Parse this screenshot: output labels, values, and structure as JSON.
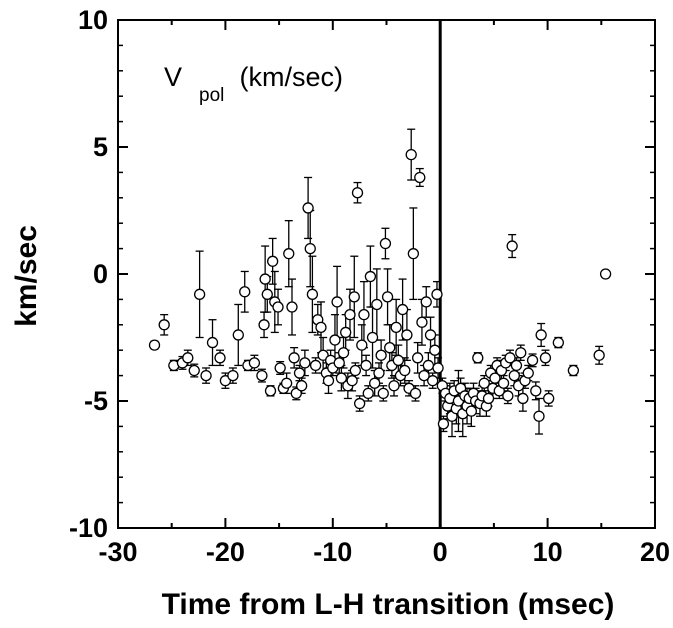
{
  "chart_data": {
    "type": "scatter",
    "title": "",
    "xlabel": "Time from L-H transition (msec)",
    "ylabel": "km/sec",
    "annotation": {
      "main": "V",
      "sub": "pol",
      "suffix": " (km/sec)"
    },
    "xlim": [
      -30,
      20
    ],
    "ylim": [
      -10,
      10
    ],
    "xticks": [
      -30,
      -20,
      -10,
      0,
      10,
      20
    ],
    "yticks": [
      -10,
      -5,
      0,
      5,
      10
    ],
    "xtick_labels": [
      "-30",
      "-20",
      "-10",
      "0",
      "10",
      "20"
    ],
    "ytick_labels": [
      "-10",
      "-5",
      "0",
      "5",
      "10"
    ],
    "grid": false,
    "reference_line_x": 0,
    "marker": "open-circle",
    "series": [
      {
        "points": [
          {
            "x": -26.6,
            "y": -2.8,
            "err": 0.15
          },
          {
            "x": -25.7,
            "y": -2.0,
            "err": 0.4
          },
          {
            "x": -24.8,
            "y": -3.6,
            "err": 0.2
          },
          {
            "x": -24.0,
            "y": -3.5,
            "err": 0.25
          },
          {
            "x": -23.5,
            "y": -3.3,
            "err": 0.3
          },
          {
            "x": -22.9,
            "y": -3.8,
            "err": 0.25
          },
          {
            "x": -22.4,
            "y": -0.8,
            "err": 1.7
          },
          {
            "x": -21.8,
            "y": -4.0,
            "err": 0.3
          },
          {
            "x": -21.2,
            "y": -2.7,
            "err": 0.9
          },
          {
            "x": -20.5,
            "y": -3.3,
            "err": 0.3
          },
          {
            "x": -20.0,
            "y": -4.2,
            "err": 0.3
          },
          {
            "x": -19.3,
            "y": -4.0,
            "err": 0.3
          },
          {
            "x": -18.8,
            "y": -2.4,
            "err": 1.2
          },
          {
            "x": -18.2,
            "y": -0.7,
            "err": 0.8
          },
          {
            "x": -17.9,
            "y": -3.6,
            "err": 0.2
          },
          {
            "x": -17.3,
            "y": -3.5,
            "err": 0.3
          },
          {
            "x": -16.6,
            "y": -4.0,
            "err": 0.25
          },
          {
            "x": -16.4,
            "y": -2.0,
            "err": 0.5
          },
          {
            "x": -16.3,
            "y": -0.2,
            "err": 1.3
          },
          {
            "x": -16.1,
            "y": -0.8,
            "err": 0.7
          },
          {
            "x": -15.8,
            "y": -4.6,
            "err": 0.2
          },
          {
            "x": -15.6,
            "y": 0.5,
            "err": 0.9
          },
          {
            "x": -15.4,
            "y": -1.1,
            "err": 1.2
          },
          {
            "x": -15.1,
            "y": -1.3,
            "err": 0.7
          },
          {
            "x": -14.9,
            "y": -3.7,
            "err": 0.25
          },
          {
            "x": -14.6,
            "y": -4.5,
            "err": 0.2
          },
          {
            "x": -14.3,
            "y": -4.3,
            "err": 0.4
          },
          {
            "x": -14.1,
            "y": 0.8,
            "err": 1.3
          },
          {
            "x": -13.8,
            "y": -1.3,
            "err": 1.1
          },
          {
            "x": -13.6,
            "y": -3.3,
            "err": 0.4
          },
          {
            "x": -13.4,
            "y": -4.7,
            "err": 0.25
          },
          {
            "x": -13.1,
            "y": -3.9,
            "err": 0.3
          },
          {
            "x": -12.9,
            "y": -4.4,
            "err": 0.3
          },
          {
            "x": -12.6,
            "y": -3.5,
            "err": 0.5
          },
          {
            "x": -12.3,
            "y": 2.6,
            "err": 1.2
          },
          {
            "x": -12.1,
            "y": 1.0,
            "err": 1.5
          },
          {
            "x": -11.9,
            "y": -0.8,
            "err": 1.5
          },
          {
            "x": -11.6,
            "y": -3.6,
            "err": 0.3
          },
          {
            "x": -11.4,
            "y": -1.8,
            "err": 0.6
          },
          {
            "x": -11.1,
            "y": -2.1,
            "err": 1.0
          },
          {
            "x": -10.9,
            "y": -3.2,
            "err": 0.7
          },
          {
            "x": -10.6,
            "y": -3.9,
            "err": 0.4
          },
          {
            "x": -10.4,
            "y": -4.2,
            "err": 0.5
          },
          {
            "x": -10.2,
            "y": -3.4,
            "err": 0.4
          },
          {
            "x": -10.0,
            "y": -3.7,
            "err": 0.3
          },
          {
            "x": -9.8,
            "y": -2.6,
            "err": 1.0
          },
          {
            "x": -9.6,
            "y": -1.1,
            "err": 1.4
          },
          {
            "x": -9.4,
            "y": -3.5,
            "err": 0.4
          },
          {
            "x": -9.2,
            "y": -4.1,
            "err": 0.5
          },
          {
            "x": -9.0,
            "y": -3.1,
            "err": 0.6
          },
          {
            "x": -8.8,
            "y": -2.3,
            "err": 0.7
          },
          {
            "x": -8.6,
            "y": -4.4,
            "err": 0.5
          },
          {
            "x": -8.4,
            "y": -1.6,
            "err": 1.0
          },
          {
            "x": -8.2,
            "y": -4.2,
            "err": 0.4
          },
          {
            "x": -8.0,
            "y": -0.9,
            "err": 1.6
          },
          {
            "x": -7.9,
            "y": -3.8,
            "err": 0.3
          },
          {
            "x": -7.7,
            "y": 3.2,
            "err": 0.4
          },
          {
            "x": -7.5,
            "y": -5.1,
            "err": 0.3
          },
          {
            "x": -7.3,
            "y": -2.8,
            "err": 0.8
          },
          {
            "x": -7.1,
            "y": -1.6,
            "err": 1.3
          },
          {
            "x": -6.9,
            "y": -3.6,
            "err": 0.4
          },
          {
            "x": -6.7,
            "y": -4.7,
            "err": 0.3
          },
          {
            "x": -6.5,
            "y": -0.1,
            "err": 1.2
          },
          {
            "x": -6.3,
            "y": -2.5,
            "err": 1.2
          },
          {
            "x": -6.1,
            "y": -4.3,
            "err": 0.5
          },
          {
            "x": -5.9,
            "y": -1.2,
            "err": 1.4
          },
          {
            "x": -5.7,
            "y": -3.9,
            "err": 0.4
          },
          {
            "x": -5.5,
            "y": -3.2,
            "err": 0.6
          },
          {
            "x": -5.3,
            "y": -4.7,
            "err": 0.3
          },
          {
            "x": -5.1,
            "y": 1.2,
            "err": 0.6
          },
          {
            "x": -4.9,
            "y": -0.9,
            "err": 1.1
          },
          {
            "x": -4.7,
            "y": -2.9,
            "err": 0.9
          },
          {
            "x": -4.5,
            "y": -3.6,
            "err": 0.5
          },
          {
            "x": -4.3,
            "y": -4.4,
            "err": 0.4
          },
          {
            "x": -4.1,
            "y": -2.1,
            "err": 1.1
          },
          {
            "x": -3.9,
            "y": -3.4,
            "err": 0.6
          },
          {
            "x": -3.7,
            "y": -4.0,
            "err": 0.4
          },
          {
            "x": -3.5,
            "y": -1.4,
            "err": 1.2
          },
          {
            "x": -3.3,
            "y": -3.8,
            "err": 0.5
          },
          {
            "x": -3.1,
            "y": -2.4,
            "err": 1.0
          },
          {
            "x": -2.9,
            "y": -4.5,
            "err": 0.3
          },
          {
            "x": -2.7,
            "y": 4.7,
            "err": 1.0
          },
          {
            "x": -2.5,
            "y": 0.8,
            "err": 1.8
          },
          {
            "x": -2.3,
            "y": -4.7,
            "err": 0.3
          },
          {
            "x": -2.1,
            "y": -3.3,
            "err": 0.6
          },
          {
            "x": -1.9,
            "y": 3.8,
            "err": 0.35
          },
          {
            "x": -1.7,
            "y": -1.9,
            "err": 0.9
          },
          {
            "x": -1.5,
            "y": -4.0,
            "err": 0.4
          },
          {
            "x": -1.3,
            "y": -1.1,
            "err": 0.6
          },
          {
            "x": -1.1,
            "y": -3.6,
            "err": 0.5
          },
          {
            "x": -0.9,
            "y": -2.4,
            "err": 0.7
          },
          {
            "x": -0.7,
            "y": -4.2,
            "err": 0.3
          },
          {
            "x": -0.5,
            "y": -3.0,
            "err": 0.6
          },
          {
            "x": -0.3,
            "y": -0.8,
            "err": 0.5
          },
          {
            "x": -0.2,
            "y": -3.7,
            "err": 0.4
          },
          {
            "x": 0.2,
            "y": -4.4,
            "err": 0.3
          },
          {
            "x": 0.3,
            "y": -5.9,
            "err": 0.3
          },
          {
            "x": 0.5,
            "y": -4.7,
            "err": 0.3
          },
          {
            "x": 0.7,
            "y": -5.2,
            "err": 0.5
          },
          {
            "x": 0.9,
            "y": -4.9,
            "err": 0.6
          },
          {
            "x": 1.1,
            "y": -5.6,
            "err": 0.8
          },
          {
            "x": 1.3,
            "y": -4.6,
            "err": 0.4
          },
          {
            "x": 1.5,
            "y": -5.3,
            "err": 0.6
          },
          {
            "x": 1.7,
            "y": -5.0,
            "err": 1.2
          },
          {
            "x": 1.9,
            "y": -4.5,
            "err": 0.4
          },
          {
            "x": 2.1,
            "y": -5.5,
            "err": 0.9
          },
          {
            "x": 2.3,
            "y": -4.8,
            "err": 0.5
          },
          {
            "x": 2.5,
            "y": -5.2,
            "err": 0.7
          },
          {
            "x": 2.7,
            "y": -4.9,
            "err": 0.4
          },
          {
            "x": 2.9,
            "y": -5.4,
            "err": 0.6
          },
          {
            "x": 3.1,
            "y": -4.7,
            "err": 0.4
          },
          {
            "x": 3.3,
            "y": -5.0,
            "err": 0.5
          },
          {
            "x": 3.5,
            "y": -3.3,
            "err": 0.2
          },
          {
            "x": 3.7,
            "y": -5.1,
            "err": 0.5
          },
          {
            "x": 3.9,
            "y": -4.8,
            "err": 0.4
          },
          {
            "x": 4.1,
            "y": -4.3,
            "err": 0.3
          },
          {
            "x": 4.3,
            "y": -5.2,
            "err": 0.4
          },
          {
            "x": 4.5,
            "y": -4.9,
            "err": 0.3
          },
          {
            "x": 4.7,
            "y": -3.9,
            "err": 0.3
          },
          {
            "x": 4.9,
            "y": -4.5,
            "err": 0.4
          },
          {
            "x": 5.1,
            "y": -4.1,
            "err": 0.3
          },
          {
            "x": 5.3,
            "y": -3.6,
            "err": 0.3
          },
          {
            "x": 5.5,
            "y": -4.6,
            "err": 0.3
          },
          {
            "x": 5.7,
            "y": -3.8,
            "err": 0.4
          },
          {
            "x": 5.9,
            "y": -4.3,
            "err": 0.3
          },
          {
            "x": 6.1,
            "y": -3.5,
            "err": 0.3
          },
          {
            "x": 6.3,
            "y": -4.8,
            "err": 0.3
          },
          {
            "x": 6.5,
            "y": -3.3,
            "err": 0.3
          },
          {
            "x": 6.7,
            "y": 1.1,
            "err": 0.45
          },
          {
            "x": 6.9,
            "y": -4.0,
            "err": 0.4
          },
          {
            "x": 7.1,
            "y": -3.6,
            "err": 0.3
          },
          {
            "x": 7.3,
            "y": -4.4,
            "err": 0.4
          },
          {
            "x": 7.5,
            "y": -3.1,
            "err": 0.3
          },
          {
            "x": 7.7,
            "y": -4.9,
            "err": 0.5
          },
          {
            "x": 7.9,
            "y": -4.2,
            "err": 0.3
          },
          {
            "x": 8.2,
            "y": -3.9,
            "err": 0.3
          },
          {
            "x": 8.6,
            "y": -3.4,
            "err": 0.25
          },
          {
            "x": 8.9,
            "y": -4.6,
            "err": 0.35
          },
          {
            "x": 9.2,
            "y": -5.6,
            "err": 0.7
          },
          {
            "x": 9.4,
            "y": -2.4,
            "err": 0.45
          },
          {
            "x": 9.8,
            "y": -3.3,
            "err": 0.3
          },
          {
            "x": 10.1,
            "y": -4.9,
            "err": 0.3
          },
          {
            "x": 11.0,
            "y": -2.7,
            "err": 0.2
          },
          {
            "x": 12.4,
            "y": -3.8,
            "err": 0.2
          },
          {
            "x": 14.8,
            "y": -3.2,
            "err": 0.35
          },
          {
            "x": 15.4,
            "y": 0.0,
            "err": 0.1
          }
        ]
      }
    ]
  }
}
